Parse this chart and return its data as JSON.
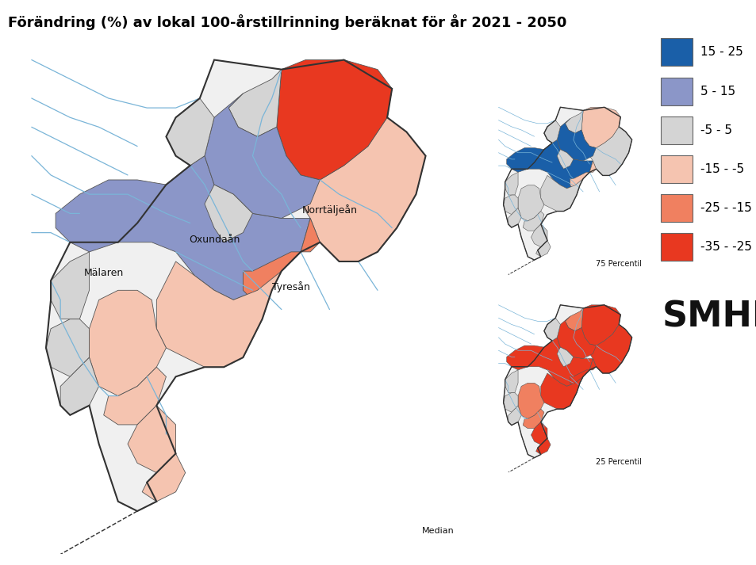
{
  "title": "Förändring (%) av lokal 100-årstillrinning beräknat för år 2021 - 2050",
  "title_fontsize": 13,
  "title_fontweight": "bold",
  "label_median": "Median",
  "label_75": "75 Percentil",
  "label_25": "25 Percentil",
  "legend_labels": [
    "15 - 25",
    "5 - 15",
    "-5 - 5",
    "-15 - -5",
    "-25 - -15",
    "-35 - -25"
  ],
  "legend_colors": [
    "#1a5fa8",
    "#8b96c8",
    "#d4d4d4",
    "#f5c4b0",
    "#f08060",
    "#e83820"
  ],
  "smhi_text": "SMHI",
  "background_color": "#ffffff",
  "river_color": "#7ab5d8",
  "border_color": "#333333",
  "text_color": "#000000",
  "label_fontsize": 9,
  "legend_fontsize": 11,
  "smhi_fontsize": 32
}
